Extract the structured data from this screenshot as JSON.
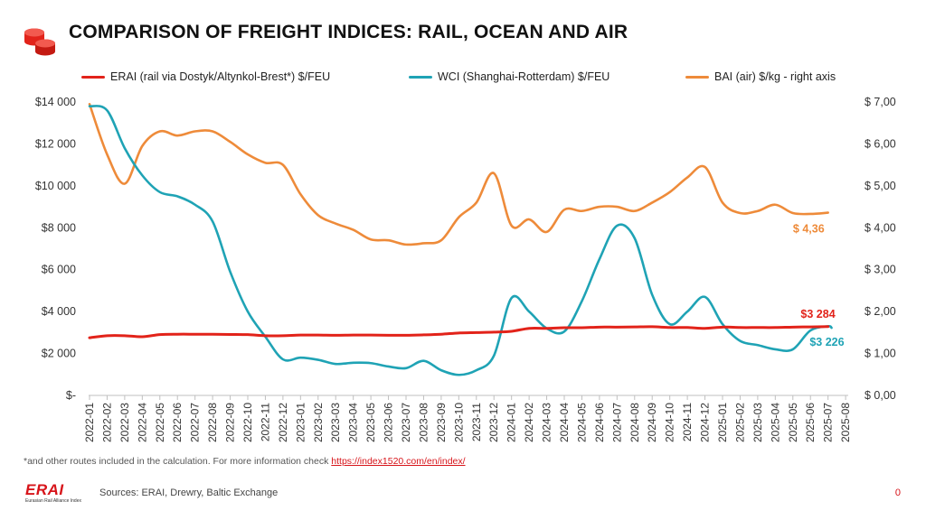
{
  "title": "COMPARISON OF FREIGHT INDICES: RAIL, OCEAN AND AIR",
  "colors": {
    "erai": "#e2231a",
    "wci": "#1fa3b5",
    "bai": "#ee8b3a",
    "accent": "#d7141a"
  },
  "footnote": {
    "text": "*and other routes included in the calculation. For more information check",
    "link": "https://index1520.com/en/index/"
  },
  "sources": "Sources: ERAI, Drewry, Baltic Exchange",
  "page_number": "0",
  "brand": {
    "logo_text": "ERAI",
    "subtitle": "Eurasian Rail Alliance Index"
  },
  "chart_data": {
    "type": "line",
    "categories": [
      "2022-01",
      "2022-02",
      "2022-03",
      "2022-04",
      "2022-05",
      "2022-06",
      "2022-07",
      "2022-08",
      "2022-09",
      "2022-10",
      "2022-11",
      "2022-12",
      "2023-01",
      "2023-02",
      "2023-03",
      "2023-04",
      "2023-05",
      "2023-06",
      "2023-07",
      "2023-08",
      "2023-09",
      "2023-10",
      "2023-11",
      "2023-12",
      "2024-01",
      "2024-02",
      "2024-03",
      "2024-04",
      "2024-05",
      "2024-06",
      "2024-07",
      "2024-08",
      "2024-09",
      "2024-10",
      "2024-11",
      "2024-12",
      "2025-01",
      "2025-02",
      "2025-03",
      "2025-04",
      "2025-05",
      "2025-06",
      "2025-07",
      "2025-08"
    ],
    "y_left": {
      "ylim": [
        0,
        14000
      ],
      "ticks": [
        "$-",
        "$2 000",
        "$4 000",
        "$6 000",
        "$8 000",
        "$10 000",
        "$12 000",
        "$14 000"
      ]
    },
    "y_right": {
      "ylim": [
        0,
        7
      ],
      "ticks": [
        "$ 0,00",
        "$ 1,00",
        "$ 2,00",
        "$ 3,00",
        "$ 4,00",
        "$ 5,00",
        "$ 6,00",
        "$ 7,00"
      ]
    },
    "x_start": 0.0,
    "x_end": 42.2,
    "series": [
      {
        "key": "erai",
        "name": "ERAI (rail via Dostyk/Altynkol-Brest*)  $/FEU",
        "axis": "left",
        "x": [
          0,
          1,
          2,
          3,
          4,
          5,
          6,
          7,
          8,
          9,
          10,
          11,
          12,
          13,
          14,
          15,
          16,
          17,
          18,
          19,
          20,
          21,
          22,
          23,
          24,
          25,
          26,
          27,
          28,
          29,
          30,
          31,
          32,
          33,
          34,
          35,
          36,
          37,
          38,
          39,
          40,
          41,
          42
        ],
        "values": [
          2750,
          2850,
          2850,
          2800,
          2900,
          2920,
          2920,
          2920,
          2910,
          2900,
          2850,
          2850,
          2880,
          2880,
          2870,
          2880,
          2880,
          2870,
          2870,
          2890,
          2920,
          2980,
          3000,
          3020,
          3060,
          3200,
          3200,
          3230,
          3230,
          3260,
          3260,
          3270,
          3280,
          3240,
          3240,
          3200,
          3260,
          3240,
          3240,
          3240,
          3260,
          3270,
          3284
        ],
        "end_label": "$3 284"
      },
      {
        "key": "wci",
        "name": "WCI (Shanghai-Rotterdam) $/FEU",
        "axis": "left",
        "x": [
          0,
          1,
          2,
          3,
          4,
          5,
          6,
          7,
          8,
          9,
          10,
          11,
          12,
          13,
          14,
          15,
          16,
          17,
          18,
          19,
          20,
          21,
          22,
          23,
          24,
          25,
          26,
          27,
          28,
          29,
          30,
          31,
          32,
          33,
          34,
          35,
          36,
          37,
          38,
          39,
          40,
          41,
          42,
          42.2
        ],
        "values": [
          13800,
          13600,
          11800,
          10500,
          9700,
          9500,
          9100,
          8300,
          5900,
          4000,
          2800,
          1720,
          1800,
          1700,
          1500,
          1560,
          1540,
          1380,
          1300,
          1650,
          1200,
          980,
          1200,
          1900,
          4650,
          4000,
          3200,
          3050,
          4500,
          6500,
          8100,
          7500,
          4800,
          3400,
          4000,
          4700,
          3400,
          2600,
          2400,
          2200,
          2200,
          3100,
          3300,
          3226
        ],
        "end_label": "$3 226"
      },
      {
        "key": "bai",
        "name": "BAI (air) $/kg - right axis",
        "axis": "right",
        "x": [
          0,
          1,
          2,
          3,
          4,
          5,
          6,
          7,
          8,
          9,
          10,
          11,
          12,
          13,
          14,
          15,
          16,
          17,
          18,
          19,
          20,
          21,
          22,
          23,
          24,
          25,
          26,
          27,
          28,
          29,
          30,
          31,
          32,
          33,
          34,
          35,
          36,
          37,
          38,
          39,
          40,
          41,
          42
        ],
        "values": [
          6.95,
          5.75,
          5.05,
          5.95,
          6.3,
          6.2,
          6.3,
          6.3,
          6.05,
          5.75,
          5.55,
          5.5,
          4.8,
          4.3,
          4.1,
          3.95,
          3.72,
          3.7,
          3.6,
          3.63,
          3.7,
          4.25,
          4.6,
          5.3,
          4.05,
          4.2,
          3.9,
          4.43,
          4.4,
          4.5,
          4.5,
          4.4,
          4.6,
          4.85,
          5.2,
          5.45,
          4.6,
          4.35,
          4.4,
          4.55,
          4.35,
          4.33,
          4.36
        ],
        "end_label": "$ 4,36"
      }
    ]
  }
}
